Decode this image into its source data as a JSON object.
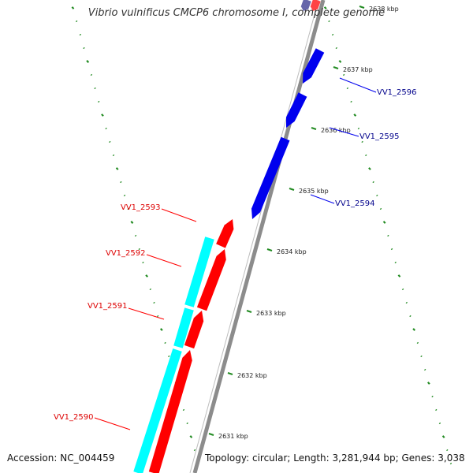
{
  "title": "Vibrio vulnificus CMCP6 chromosome I, complete genome",
  "accession_text": "Accession: NC_004459",
  "summary_text": "Topology: circular; Length: 3,281,944 bp; Genes: 3,038",
  "colors": {
    "backbone": "#888888",
    "tick": "#228B22",
    "forward_gene": "#0000EE",
    "reverse_gene": "#FF0000",
    "cds_feature": "#00FFFF",
    "forward_label": "#00008B",
    "reverse_label": "#DD0000"
  },
  "kbp_labels": [
    "2631 kbp",
    "2632 kbp",
    "2633 kbp",
    "2634 kbp",
    "2635 kbp",
    "2636 kbp",
    "2637 kbp",
    "2638 kbp"
  ],
  "forward_genes": [
    {
      "label": "VV1_2594"
    },
    {
      "label": "VV1_2595"
    },
    {
      "label": "VV1_2596"
    }
  ],
  "reverse_genes": [
    {
      "label": "VV1_2590"
    },
    {
      "label": "VV1_2591"
    },
    {
      "label": "VV1_2592"
    },
    {
      "label": "VV1_2593"
    }
  ]
}
